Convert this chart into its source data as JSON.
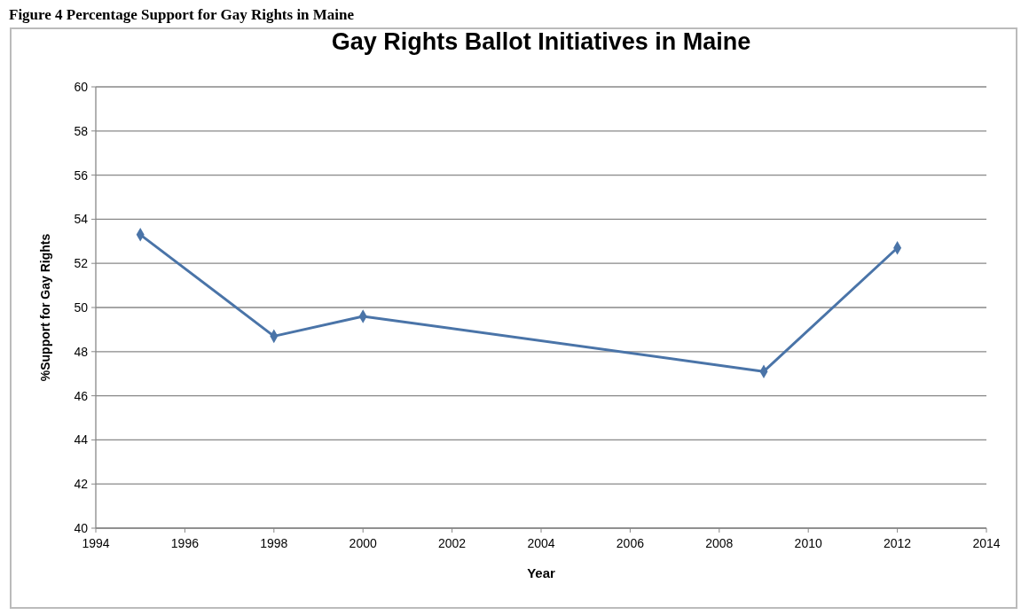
{
  "chart_data": {
    "type": "line",
    "title": "Gay Rights Ballot Initiatives in Maine",
    "annotations": [
      "Figure 4 Percentage Support for Gay Rights in Maine"
    ],
    "xlabel": "Year",
    "ylabel": "%Support for Gay Rights",
    "x": [
      1995,
      1998,
      2000,
      2009,
      2012
    ],
    "series": [
      {
        "color": "#4a74a8",
        "values": [
          53.3,
          48.7,
          49.6,
          47.1,
          52.7
        ]
      }
    ],
    "xlim": [
      1994,
      2014
    ],
    "xticks": [
      1994,
      1996,
      1998,
      2000,
      2002,
      2004,
      2006,
      2008,
      2010,
      2012,
      2014
    ],
    "ylim": [
      40,
      60
    ],
    "yticks": [
      40,
      42,
      44,
      46,
      48,
      50,
      52,
      54,
      56,
      58,
      60
    ],
    "grid": "y",
    "marker": "diamond",
    "line_style": "solid"
  }
}
